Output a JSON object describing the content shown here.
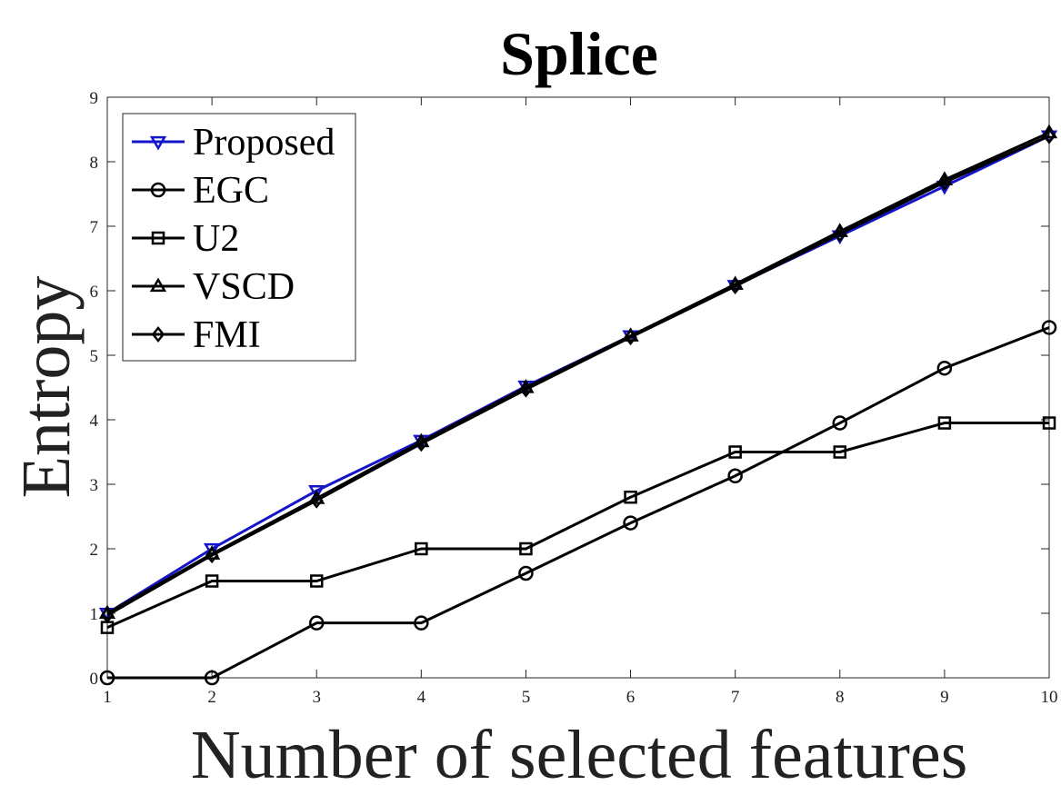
{
  "chart_data": {
    "type": "line",
    "title": "Splice",
    "xlabel": "Number of selected features",
    "ylabel": "Entropy",
    "x": [
      1,
      2,
      3,
      4,
      5,
      6,
      7,
      8,
      9,
      10
    ],
    "xlim": [
      1,
      10
    ],
    "ylim": [
      0,
      9
    ],
    "xticks": [
      "1",
      "2",
      "3",
      "4",
      "5",
      "6",
      "7",
      "8",
      "9",
      "10"
    ],
    "yticks": [
      "0",
      "1",
      "2",
      "3",
      "4",
      "5",
      "6",
      "7",
      "8",
      "9"
    ],
    "grid": false,
    "legend_position": "top-left",
    "series": [
      {
        "name": "Proposed",
        "marker": "triangle-down",
        "color": "#1414c8",
        "values": [
          1.0,
          2.0,
          2.9,
          3.68,
          4.52,
          5.3,
          6.08,
          6.85,
          7.62,
          8.4
        ]
      },
      {
        "name": "EGC",
        "marker": "circle",
        "color": "#000000",
        "values": [
          0.0,
          0.0,
          0.85,
          0.85,
          1.62,
          2.4,
          3.13,
          3.95,
          4.8,
          5.43
        ]
      },
      {
        "name": "U2",
        "marker": "square",
        "color": "#000000",
        "values": [
          0.78,
          1.5,
          1.5,
          2.0,
          2.0,
          2.8,
          3.5,
          3.5,
          3.95,
          3.95
        ]
      },
      {
        "name": "VSCD",
        "marker": "triangle-up",
        "color": "#000000",
        "values": [
          1.0,
          1.92,
          2.78,
          3.66,
          4.5,
          5.3,
          6.1,
          6.92,
          7.72,
          8.45
        ]
      },
      {
        "name": "FMI",
        "marker": "diamond",
        "color": "#000000",
        "values": [
          0.97,
          1.9,
          2.75,
          3.63,
          4.47,
          5.28,
          6.07,
          6.88,
          7.68,
          8.4
        ]
      }
    ]
  }
}
